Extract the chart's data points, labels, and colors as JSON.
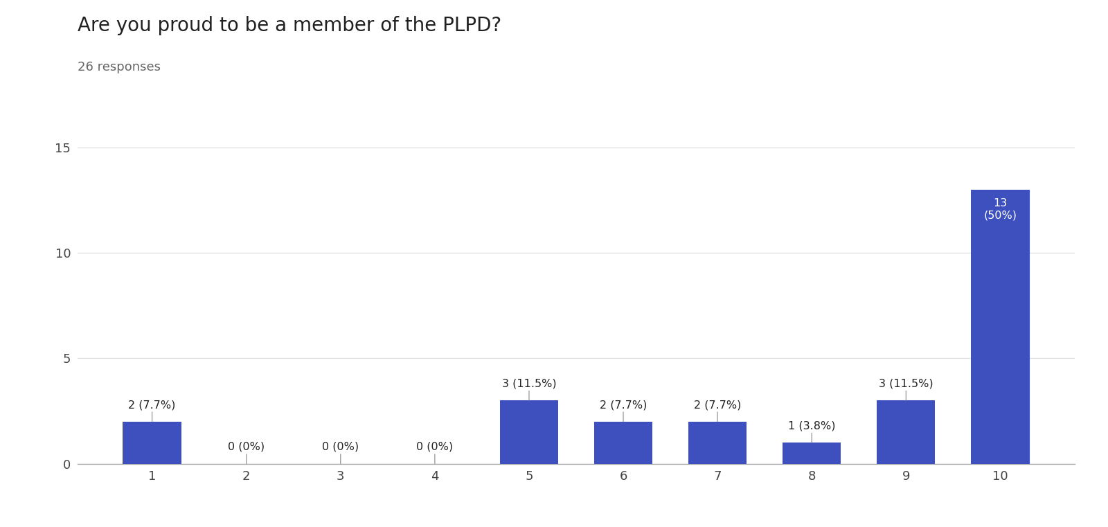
{
  "title": "Are you proud to be a member of the PLPD?",
  "subtitle": "26 responses",
  "categories": [
    1,
    2,
    3,
    4,
    5,
    6,
    7,
    8,
    9,
    10
  ],
  "values": [
    2,
    0,
    0,
    0,
    3,
    2,
    2,
    1,
    3,
    13
  ],
  "labels_nonlast": [
    "2 (7.7%)",
    "0 (0%)",
    "0 (0%)",
    "0 (0%)",
    "3 (11.5%)",
    "2 (7.7%)",
    "2 (7.7%)",
    "1 (3.8%)",
    "3 (11.5%)"
  ],
  "label_last": "13\n(50%)",
  "bar_color": "#3d50bd",
  "background_color": "#ffffff",
  "ylim": [
    0,
    15
  ],
  "yticks": [
    0,
    5,
    10,
    15
  ],
  "title_fontsize": 20,
  "subtitle_fontsize": 13,
  "label_fontsize": 11.5,
  "tick_fontsize": 13,
  "bar_width": 0.62
}
